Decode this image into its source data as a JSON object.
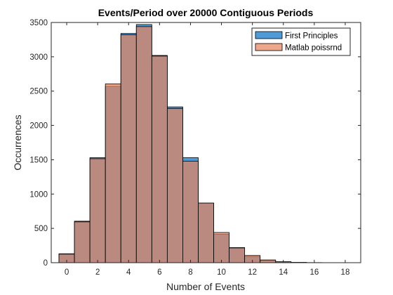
{
  "chart_data": {
    "type": "bar",
    "title": "Events/Period over 20000 Contiguous Periods",
    "xlabel": "Number of Events",
    "ylabel": "Occurrences",
    "xlim": [
      -1,
      19
    ],
    "ylim": [
      0,
      3500
    ],
    "xticks": [
      0,
      2,
      4,
      6,
      8,
      10,
      12,
      14,
      16,
      18
    ],
    "yticks": [
      0,
      500,
      1000,
      1500,
      2000,
      2500,
      3000,
      3500
    ],
    "x": [
      0,
      1,
      2,
      3,
      4,
      5,
      6,
      7,
      8,
      9,
      10,
      11,
      12,
      13,
      14,
      15,
      16,
      17
    ],
    "series": [
      {
        "name": "First Principles",
        "color": "#4f9bd8",
        "values": [
          130,
          605,
          1530,
          2570,
          3340,
          3470,
          3020,
          2270,
          1530,
          865,
          415,
          220,
          90,
          35,
          10,
          3,
          0,
          0
        ]
      },
      {
        "name": "Matlab poissrnd",
        "color": "#e8825a",
        "values": [
          125,
          595,
          1515,
          2605,
          3320,
          3440,
          3010,
          2245,
          1480,
          870,
          440,
          215,
          105,
          40,
          15,
          5,
          2,
          0
        ]
      }
    ],
    "legend": "top-right",
    "grid": false
  }
}
